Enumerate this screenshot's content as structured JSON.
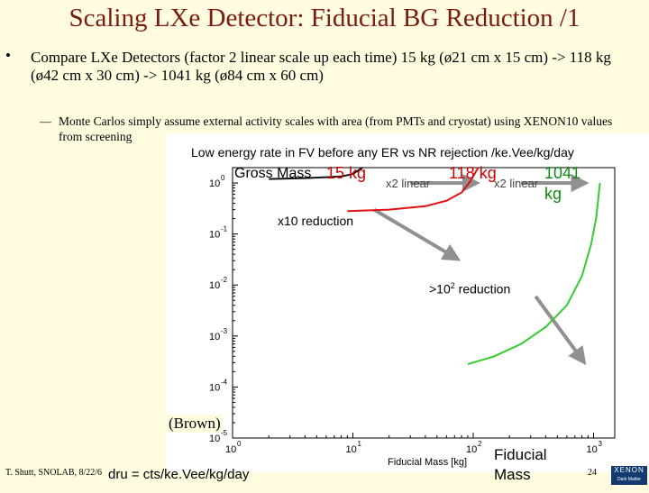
{
  "slide": {
    "title": "Scaling LXe Detector: Fiducial BG Reduction /1",
    "bullet": "Compare LXe Detectors (factor 2 linear scale up each time) 15 kg (ø21 cm x 15 cm)  -> 118 kg (ø42 cm x 30 cm)  -> 1041 kg (ø84 cm x 60 cm)",
    "sub_bullet": "Monte Carlos simply assume external activity scales with area (from PMTs and cryostat) using XENON10 values from screening",
    "bullet_marker": "•",
    "sub_marker": "—",
    "footer_left": "T. Shutt, SNOLAB, 8/22/6",
    "footer_unit": "dru = cts/ke.Vee/kg/day",
    "page_number": "24",
    "logo_top": "XENON",
    "logo_bottom": "Dark Matter Project"
  },
  "annotations": {
    "gross_mass": "Gross Mass",
    "label_15": "15 kg",
    "x2_a": "x2 linear",
    "label_118": "118 kg",
    "x2_b": "x2 linear",
    "label_1041_a": "1041",
    "label_1041_b": "kg",
    "reduction_10": "x10 reduction",
    "reduction_100_pre": ">10",
    "reduction_100_sup": "2",
    "reduction_100_post": " reduction",
    "brown": "(Brown)",
    "fiducial_a": "Fiducial",
    "fiducial_b": "Mass"
  },
  "chart_data": {
    "type": "line",
    "title": "Low energy rate in FV before any ER vs NR rejection  /ke.Vee/kg/day",
    "xlabel": "Fiducial Mass [kg]",
    "ylabel": "",
    "x_scale": "log",
    "y_scale": "log",
    "xlim": [
      1,
      1500
    ],
    "ylim": [
      1e-05,
      2
    ],
    "x_ticks": [
      {
        "value": 1,
        "base": "10",
        "exp": "0"
      },
      {
        "value": 10,
        "base": "10",
        "exp": "1"
      },
      {
        "value": 100,
        "base": "10",
        "exp": "2"
      },
      {
        "value": 1000,
        "base": "10",
        "exp": "3"
      }
    ],
    "y_ticks": [
      {
        "value": 1,
        "base": "10",
        "exp": "0"
      },
      {
        "value": 0.1,
        "base": "10",
        "exp": "-1"
      },
      {
        "value": 0.01,
        "base": "10",
        "exp": "-2"
      },
      {
        "value": 0.001,
        "base": "10",
        "exp": "-3"
      },
      {
        "value": 0.0001,
        "base": "10",
        "exp": "-4"
      },
      {
        "value": 1e-05,
        "base": "10",
        "exp": "-5"
      }
    ],
    "grid": false,
    "series": [
      {
        "color": "#111111",
        "points": [
          [
            2,
            1.2
          ],
          [
            4,
            1.25
          ],
          [
            6,
            1.3
          ],
          [
            8,
            1.35
          ],
          [
            10,
            1.5
          ],
          [
            12,
            2
          ]
        ]
      },
      {
        "color": "#e01010",
        "points": [
          [
            9,
            0.28
          ],
          [
            20,
            0.3
          ],
          [
            40,
            0.35
          ],
          [
            60,
            0.45
          ],
          [
            80,
            0.65
          ],
          [
            95,
            1.1
          ],
          [
            110,
            2
          ]
        ]
      },
      {
        "color": "#33cc33",
        "points": [
          [
            90,
            0.00028
          ],
          [
            150,
            0.0004
          ],
          [
            250,
            0.0007
          ],
          [
            400,
            0.0015
          ],
          [
            600,
            0.004
          ],
          [
            800,
            0.015
          ],
          [
            950,
            0.06
          ],
          [
            1050,
            0.2
          ],
          [
            1130,
            1.0
          ]
        ]
      }
    ],
    "arrows": [
      {
        "from": [
          15,
          0.3
        ],
        "to": [
          70,
          0.035
        ]
      },
      {
        "from": [
          330,
          0.006
        ],
        "to": [
          800,
          0.00035
        ]
      },
      {
        "from": [
          30,
          1.0
        ],
        "to": [
          100,
          1.0
        ]
      },
      {
        "from": [
          250,
          1.0
        ],
        "to": [
          800,
          1.0
        ]
      }
    ]
  }
}
